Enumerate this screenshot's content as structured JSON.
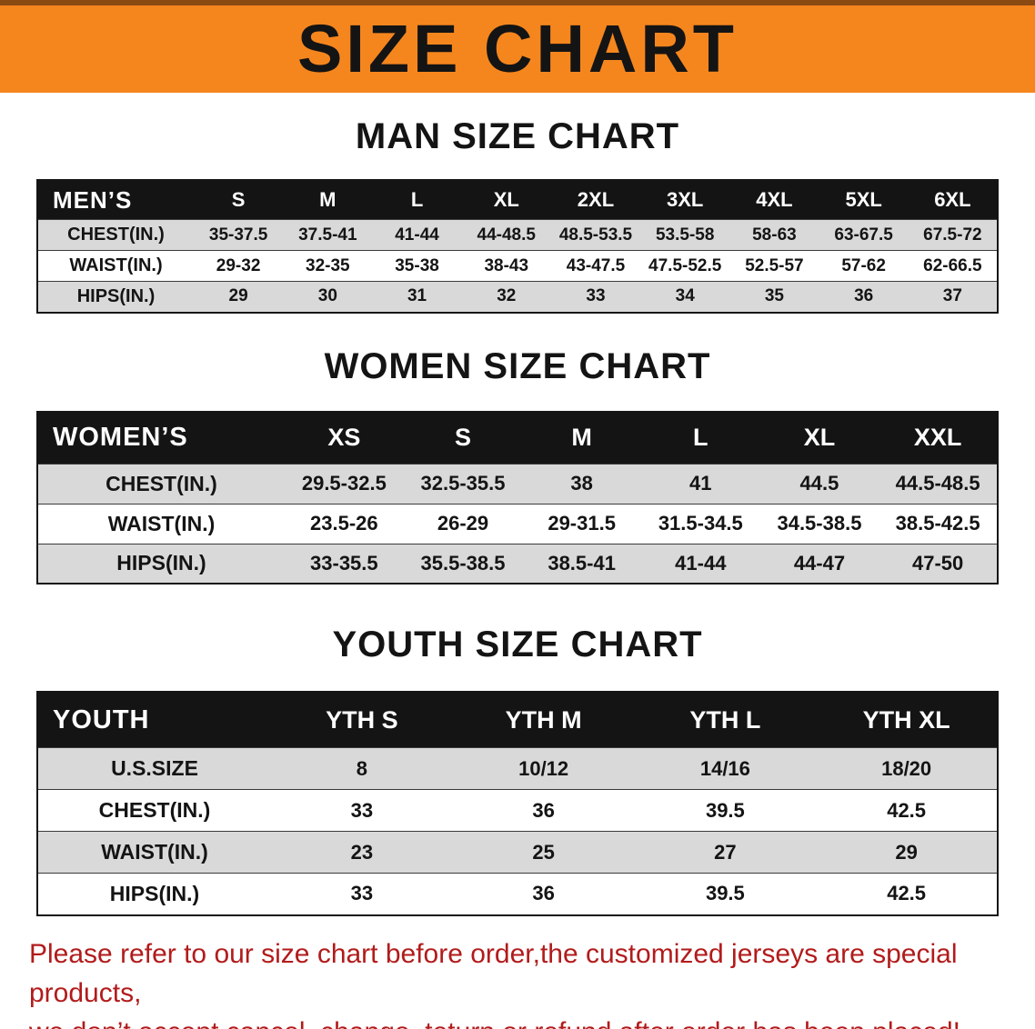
{
  "banner": {
    "title": "SIZE CHART",
    "bg_color": "#f5861e"
  },
  "sections": [
    {
      "heading": "MAN SIZE CHART",
      "table": {
        "header": [
          "MEN’S",
          "S",
          "M",
          "L",
          "XL",
          "2XL",
          "3XL",
          "4XL",
          "5XL",
          "6XL"
        ],
        "rows": [
          [
            "CHEST(IN.)",
            "35-37.5",
            "37.5-41",
            "41-44",
            "44-48.5",
            "48.5-53.5",
            "53.5-58",
            "58-63",
            "63-67.5",
            "67.5-72"
          ],
          [
            "WAIST(IN.)",
            "29-32",
            "32-35",
            "35-38",
            "38-43",
            "43-47.5",
            "47.5-52.5",
            "52.5-57",
            "57-62",
            "62-66.5"
          ],
          [
            "HIPS(IN.)",
            "29",
            "30",
            "31",
            "32",
            "33",
            "34",
            "35",
            "36",
            "37"
          ]
        ]
      }
    },
    {
      "heading": "WOMEN SIZE CHART",
      "table": {
        "header": [
          "WOMEN’S",
          "XS",
          "S",
          "M",
          "L",
          "XL",
          "XXL"
        ],
        "rows": [
          [
            "CHEST(IN.)",
            "29.5-32.5",
            "32.5-35.5",
            "38",
            "41",
            "44.5",
            "44.5-48.5"
          ],
          [
            "WAIST(IN.)",
            "23.5-26",
            "26-29",
            "29-31.5",
            "31.5-34.5",
            "34.5-38.5",
            "38.5-42.5"
          ],
          [
            "HIPS(IN.)",
            "33-35.5",
            "35.5-38.5",
            "38.5-41",
            "41-44",
            "44-47",
            "47-50"
          ]
        ]
      }
    },
    {
      "heading": "YOUTH SIZE CHART",
      "table": {
        "header": [
          "YOUTH",
          "YTH S",
          "YTH M",
          "YTH L",
          "YTH XL"
        ],
        "rows": [
          [
            "U.S.SIZE",
            "8",
            "10/12",
            "14/16",
            "18/20"
          ],
          [
            "CHEST(IN.)",
            "33",
            "36",
            "39.5",
            "42.5"
          ],
          [
            "WAIST(IN.)",
            "23",
            "25",
            "27",
            "29"
          ],
          [
            "HIPS(IN.)",
            "33",
            "36",
            "39.5",
            "42.5"
          ]
        ]
      }
    }
  ],
  "footer": {
    "line1": "Please refer to our size chart before order,the customized jerseys are special products,",
    "line2": "we don’t accept cancel, change, teturn or refund after order has been placed!",
    "text_color": "#b21b1b"
  }
}
